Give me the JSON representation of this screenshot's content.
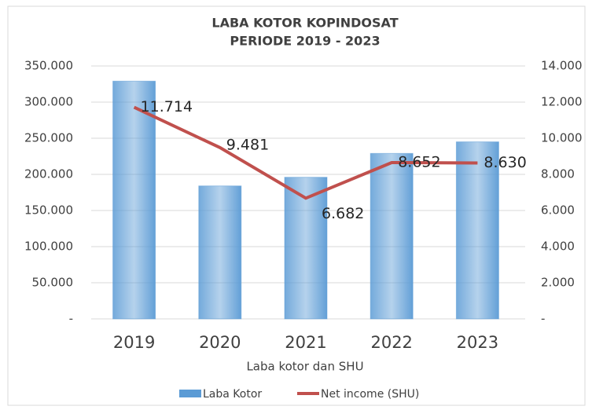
{
  "chart_data": {
    "type": "bar",
    "title": "LABA KOTOR KOPINDOSAT",
    "subtitle": "PERIODE 2019 - 2023",
    "x_label": "Laba kotor dan SHU",
    "categories": [
      "2019",
      "2020",
      "2021",
      "2022",
      "2023"
    ],
    "series": [
      {
        "name": "Laba Kotor",
        "type": "bar",
        "color": "#5b9bd5",
        "values": [
          329000,
          184000,
          196000,
          229000,
          245000
        ]
      },
      {
        "name": "Net income (SHU)",
        "type": "line",
        "axis": "y2",
        "color": "#c0504d",
        "values": [
          11714,
          9481,
          6682,
          8652,
          8630
        ],
        "value_labels": [
          "11.714",
          "9.481",
          "6.682",
          "8.652",
          "8.630"
        ]
      }
    ],
    "ylim": [
      0,
      350000
    ],
    "yticks": [
      {
        "value": 0,
        "label": "-"
      },
      {
        "value": 50000,
        "label": "50.000"
      },
      {
        "value": 100000,
        "label": "100.000"
      },
      {
        "value": 150000,
        "label": "150.000"
      },
      {
        "value": 200000,
        "label": "200.000"
      },
      {
        "value": 250000,
        "label": "250.000"
      },
      {
        "value": 300000,
        "label": "300.000"
      },
      {
        "value": 350000,
        "label": "350.000"
      }
    ],
    "y2lim": [
      0,
      14000
    ],
    "y2ticks": [
      {
        "value": 0,
        "label": "-"
      },
      {
        "value": 2000,
        "label": "2.000"
      },
      {
        "value": 4000,
        "label": "4.000"
      },
      {
        "value": 6000,
        "label": "6.000"
      },
      {
        "value": 8000,
        "label": "8.000"
      },
      {
        "value": 10000,
        "label": "10.000"
      },
      {
        "value": 12000,
        "label": "12.000"
      },
      {
        "value": 14000,
        "label": "14.000"
      }
    ],
    "grid": true,
    "legend": "bottom"
  }
}
